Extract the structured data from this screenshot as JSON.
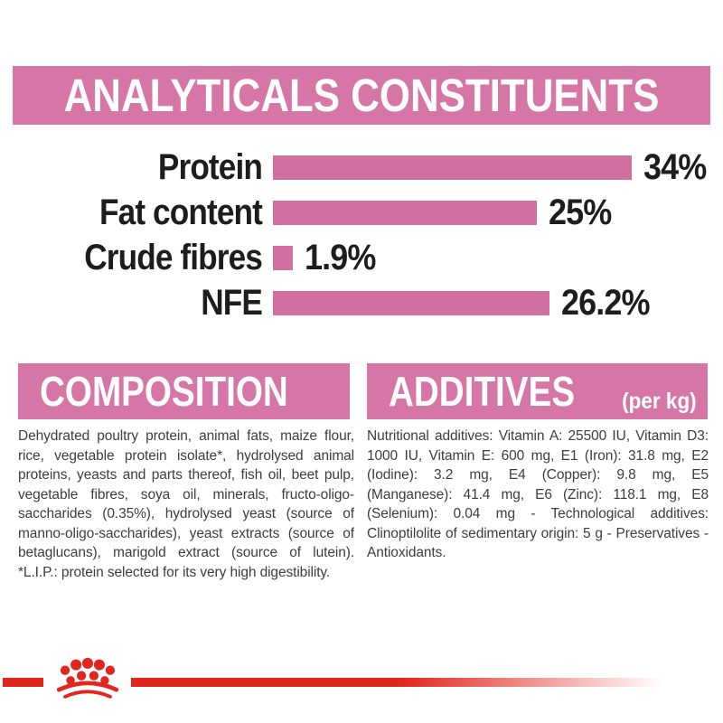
{
  "header": {
    "title": "ANALYTICALS CONSTITUENTS"
  },
  "chart_data": {
    "type": "bar",
    "orientation": "horizontal",
    "categories": [
      "Protein",
      "Fat content",
      "Crude fibres",
      "NFE"
    ],
    "values": [
      34,
      25,
      1.9,
      26.2
    ],
    "value_labels": [
      "34%",
      "25%",
      "1.9%",
      "26.2%"
    ],
    "title": "ANALYTICALS CONSTITUENTS",
    "xlabel": "",
    "ylabel": "",
    "xlim": [
      0,
      34
    ],
    "grid": false,
    "legend": "none",
    "bar_color": "#d06fa0"
  },
  "sections": {
    "composition": {
      "title": "COMPOSITION",
      "body": "Dehydrated poultry protein, animal fats, maize flour, rice, vegetable protein isolate*, hydrolysed animal proteins, yeasts and parts thereof, fish oil, beet pulp, vegetable fibres, soya oil, minerals, fructo-oligo-saccharides (0.35%), hydrolysed yeast (source of manno-oligo-saccharides), yeast extracts (source of betaglucans), marigold extract (source of lutein). *L.I.P.: protein selected for its very high digestibility."
    },
    "additives": {
      "title": "ADDITIVES",
      "subtitle": "(per kg)",
      "body": "Nutritional additives: Vitamin A: 25500 IU, Vitamin D3: 1000 IU, Vitamin E: 600 mg, E1 (Iron): 31.8 mg, E2 (Iodine): 3.2 mg, E4 (Copper): 9.8 mg, E5 (Manganese): 41.4 mg, E6 (Zinc): 118.1 mg, E8 (Selenium): 0.04 mg - Technological additives: Clinoptilolite of sedimentary origin: 5 g - Preservatives - Antioxidants."
    }
  },
  "branding": {
    "logo": "royal-canin-crown-icon"
  },
  "colors": {
    "banner_pink": "#d676a6",
    "bar_pink": "#d06fa0",
    "accent_red": "#e2261d",
    "label_black": "#1d1d1b",
    "body_text": "#3d3d3d"
  }
}
